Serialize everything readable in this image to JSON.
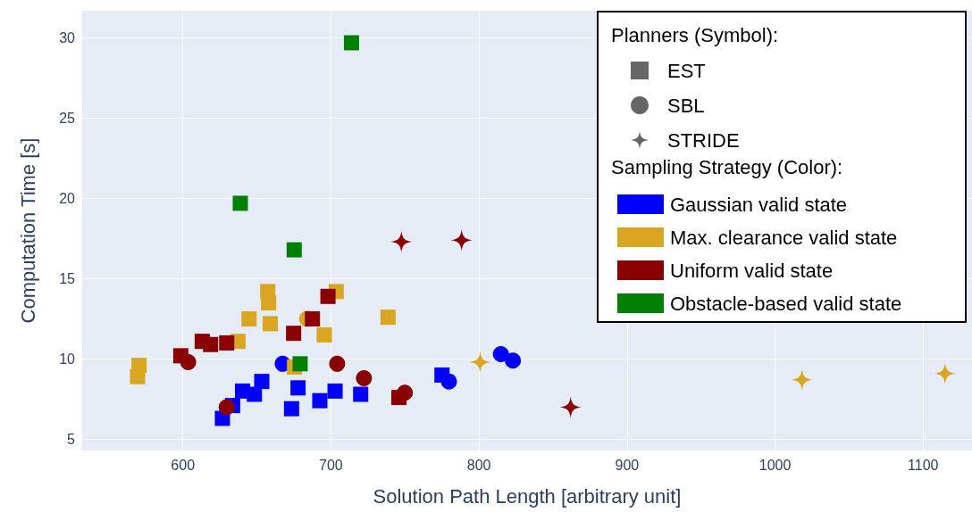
{
  "chart_data": {
    "type": "scatter",
    "xlabel": "Solution Path Length [arbitrary unit]",
    "ylabel": "Computation Time [s]",
    "xlim": [
      532,
      1133
    ],
    "ylim": [
      4.3,
      31.7
    ],
    "xticks": [
      600,
      700,
      800,
      900,
      1000,
      1100
    ],
    "yticks": [
      5,
      10,
      15,
      20,
      25,
      30
    ],
    "grid": true,
    "legend": "top right",
    "legend_title": [
      "Planners (Symbol):",
      "Sampling Strategy (Color):"
    ],
    "series": [
      {
        "name": "EST",
        "color": "#666666",
        "marker": "square"
      },
      {
        "name": "SBL",
        "color": "#666666",
        "marker": "circle"
      },
      {
        "name": "STRIDE",
        "color": "#666666",
        "marker": "star"
      },
      {
        "name": "Gaussian valid state",
        "color": "#0000ff"
      },
      {
        "name": "Max. clearance valid state",
        "color": "#daa520"
      },
      {
        "name": "Uniform valid state",
        "color": "#8b0000"
      },
      {
        "name": "Obstacle-based valid state",
        "color": "#008000"
      },
      {
        "color": "#0000ff",
        "marker": "square",
        "x": [
          626.7,
          633.6,
          640.3,
          648.3,
          653.3,
          677.8,
          673.4,
          692.5,
          702.8,
          720.1,
          775
        ],
        "values": [
          6.3,
          7.1,
          8.0,
          7.8,
          8.6,
          8.2,
          6.9,
          7.4,
          8.0,
          7.8,
          9.0
        ]
      },
      {
        "color": "#0000ff",
        "marker": "circle",
        "x": [
          667.4,
          779.7,
          814.8,
          822.9
        ],
        "values": [
          9.7,
          8.6,
          10.3,
          9.9
        ]
      },
      {
        "color": "#daa520",
        "marker": "square",
        "x": [
          570.4,
          569.4,
          637.2,
          644.7,
          657.3,
          657.9,
          659.0,
          675.4,
          695.5,
          703.6,
          738.6
        ],
        "values": [
          9.6,
          8.9,
          11.1,
          12.5,
          14.2,
          13.5,
          12.2,
          9.5,
          11.5,
          14.2,
          12.6
        ]
      },
      {
        "color": "#daa520",
        "marker": "circle",
        "x": [
          683.9
        ],
        "values": [
          12.5
        ]
      },
      {
        "color": "#daa520",
        "marker": "star",
        "x": [
          800.8,
          1018.2,
          1114.8
        ],
        "values": [
          9.8,
          8.7,
          9.1
        ]
      },
      {
        "color": "#8b0000",
        "marker": "square",
        "x": [
          598.6,
          613.1,
          618.7,
          629.6,
          674.8,
          687.5,
          698.0,
          745.9
        ],
        "values": [
          10.2,
          11.1,
          10.9,
          11.0,
          11.6,
          12.5,
          13.9,
          7.6
        ]
      },
      {
        "color": "#8b0000",
        "marker": "circle",
        "x": [
          603.6,
          629.6,
          704.2,
          722.3,
          749.9
        ],
        "values": [
          9.8,
          7.0,
          9.7,
          8.8,
          7.9
        ]
      },
      {
        "color": "#8b0000",
        "marker": "star",
        "x": [
          747.6,
          788.3,
          861.9
        ],
        "values": [
          17.3,
          17.4,
          7.0
        ]
      },
      {
        "color": "#008000",
        "marker": "square",
        "x": [
          713.9,
          638.8,
          675.2,
          679.2
        ],
        "values": [
          29.7,
          19.7,
          16.8,
          9.7
        ]
      }
    ]
  }
}
